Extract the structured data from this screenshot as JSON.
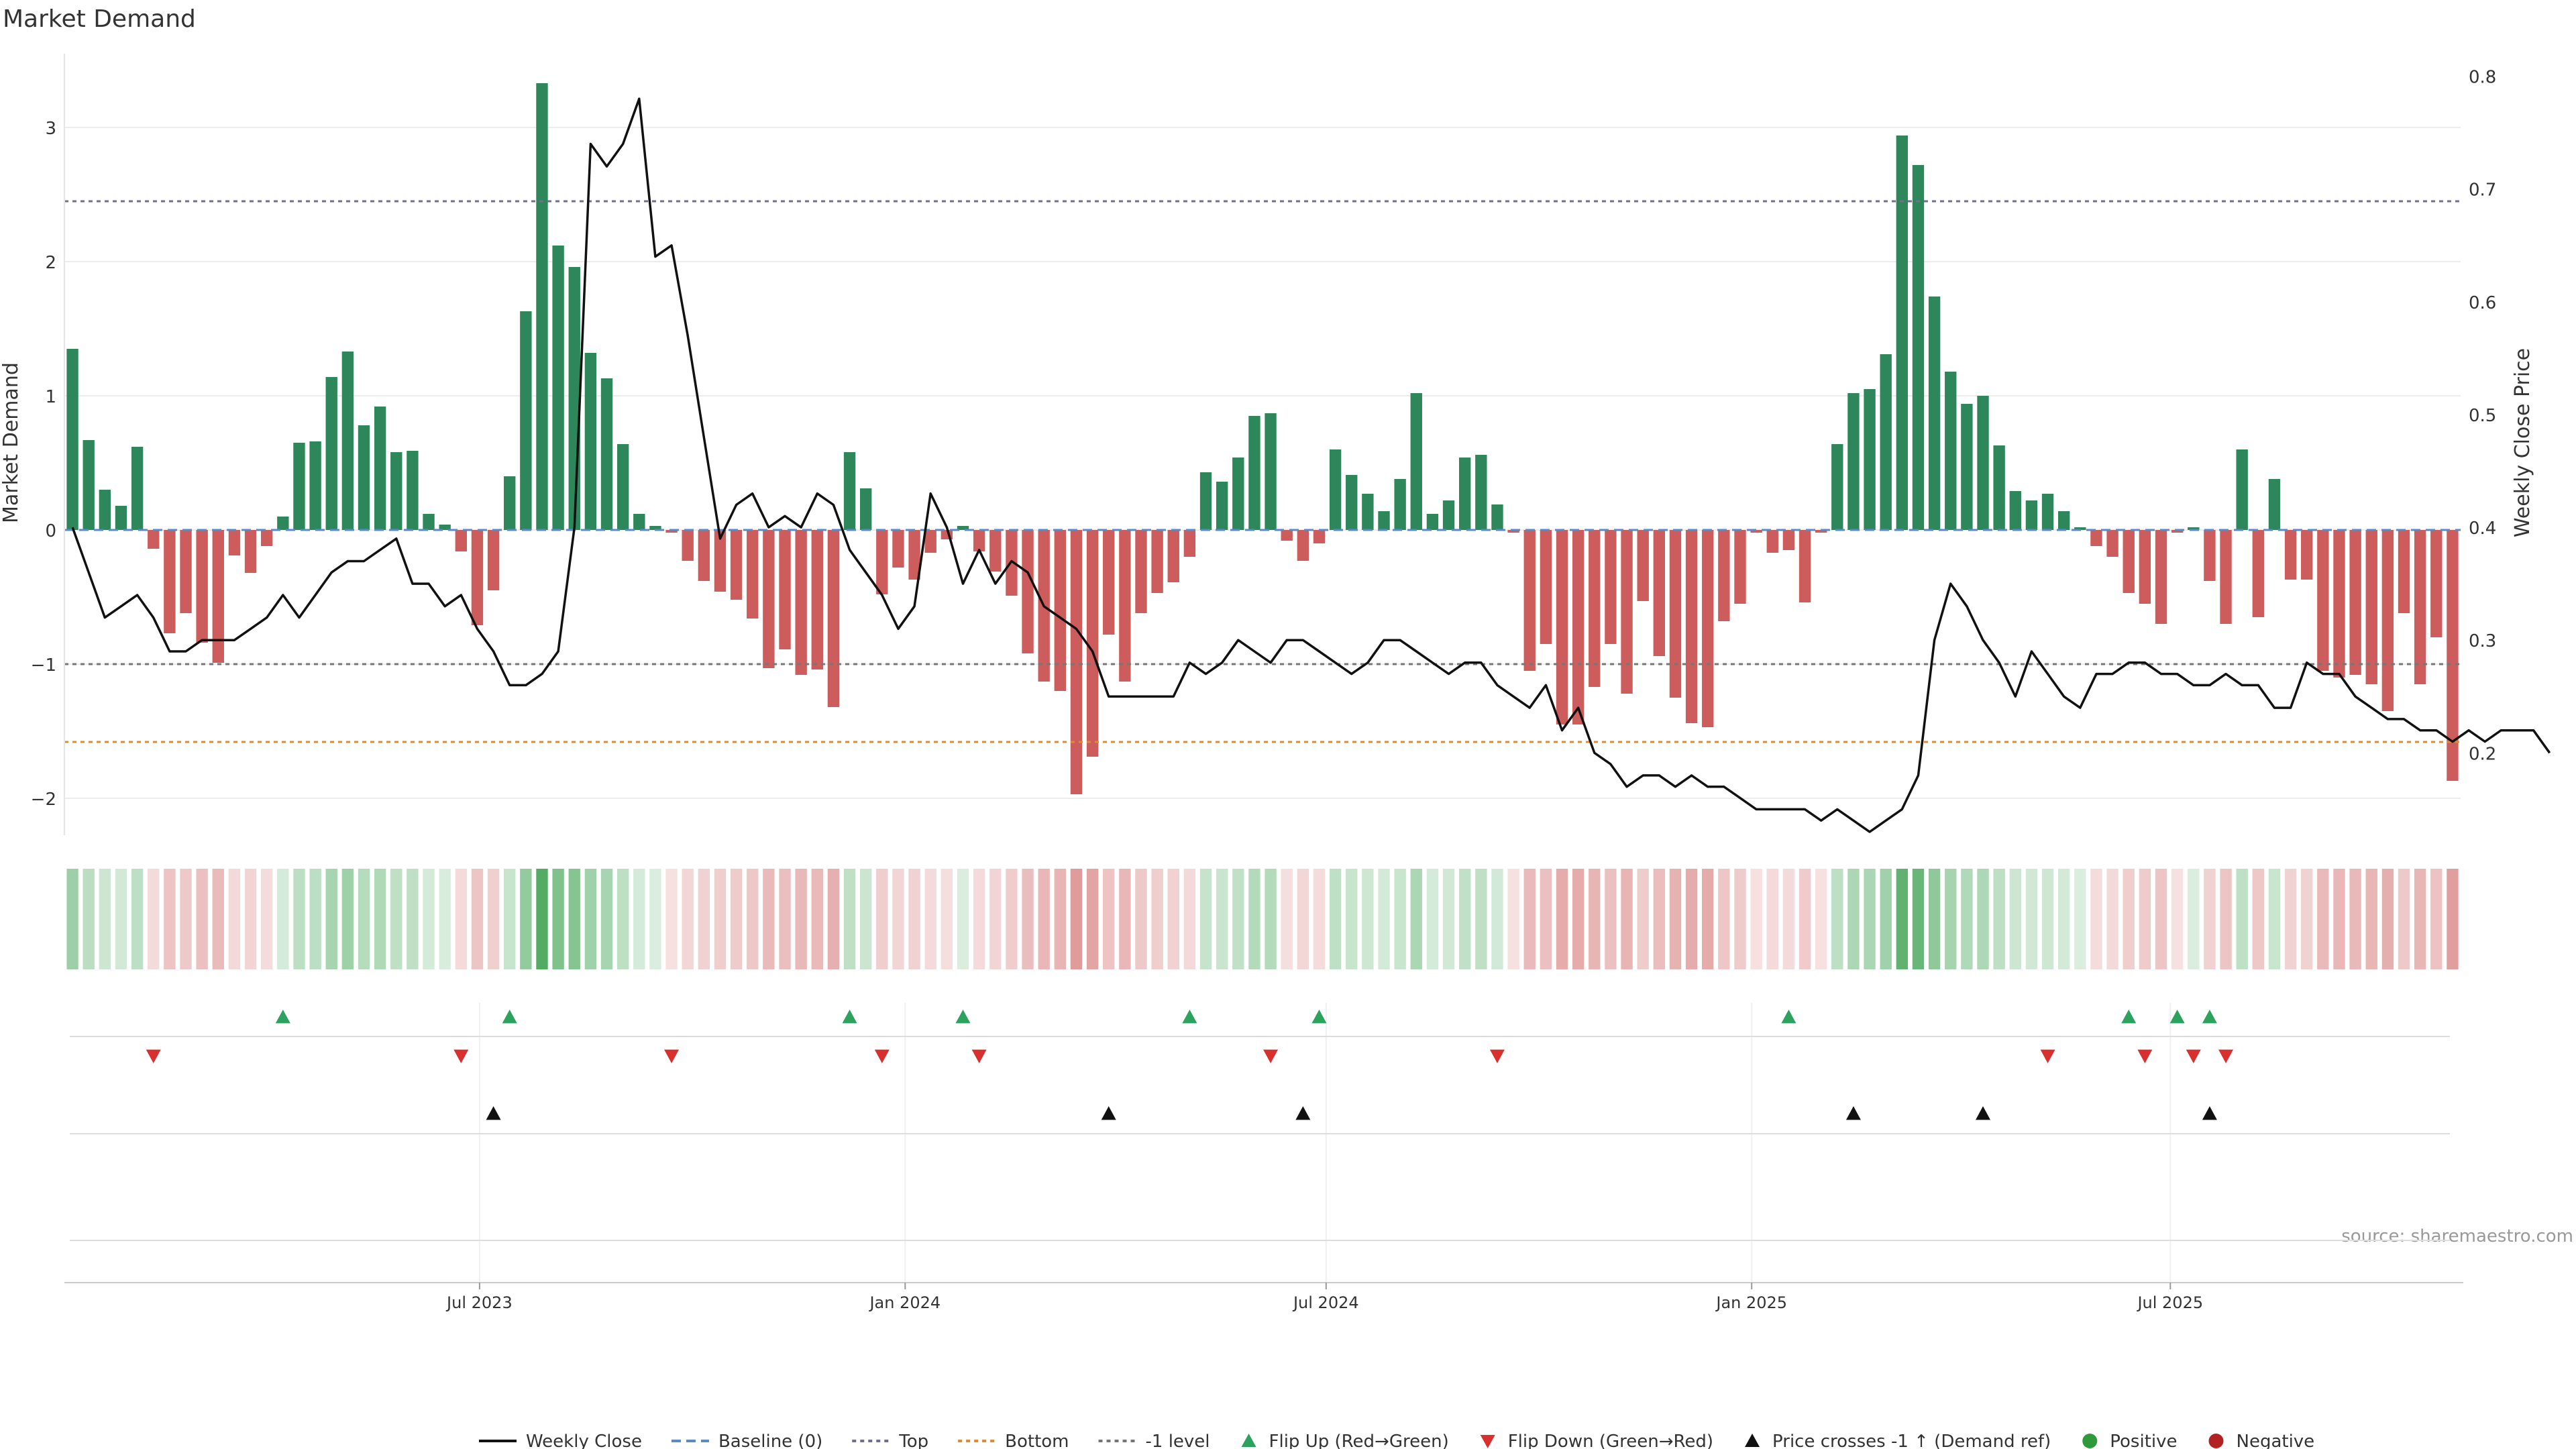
{
  "chart_data": {
    "type": "bar",
    "title": "Market Demand",
    "ylabel": "Market Demand",
    "y2label": "Weekly Close Price",
    "ylim": [
      -2.25,
      3.55
    ],
    "y2lim": [
      0.13,
      0.82
    ],
    "yticks": [
      -2,
      -1,
      0,
      1,
      2,
      3
    ],
    "y2ticks": [
      0.2,
      0.3,
      0.4,
      0.5,
      0.6,
      0.7,
      0.8
    ],
    "x_start": "2023-01-06",
    "x_step_days": 7,
    "xticks": [
      {
        "label": "Jul 2023",
        "date": "2023-07-01"
      },
      {
        "label": "Jan 2024",
        "date": "2024-01-01"
      },
      {
        "label": "Jul 2024",
        "date": "2024-07-01"
      },
      {
        "label": "Jan 2025",
        "date": "2025-01-01"
      },
      {
        "label": "Jul 2025",
        "date": "2025-07-01"
      }
    ],
    "levels": {
      "baseline": 0,
      "top": 2.45,
      "bottom": -1.58,
      "minus_one": -1
    },
    "demand": [
      1.35,
      0.67,
      0.3,
      0.18,
      0.62,
      -0.14,
      -0.77,
      -0.62,
      -0.84,
      -0.99,
      -0.19,
      -0.32,
      -0.12,
      0.1,
      0.65,
      0.66,
      1.14,
      1.33,
      0.78,
      0.92,
      0.58,
      0.59,
      0.12,
      0.04,
      -0.16,
      -0.71,
      -0.45,
      0.4,
      1.63,
      3.33,
      2.12,
      1.96,
      1.32,
      1.13,
      0.64,
      0.12,
      0.03,
      -0.02,
      -0.23,
      -0.38,
      -0.46,
      -0.52,
      -0.66,
      -1.03,
      -0.89,
      -1.08,
      -1.04,
      -1.32,
      0.58,
      0.31,
      -0.48,
      -0.28,
      -0.37,
      -0.17,
      -0.07,
      0.03,
      -0.16,
      -0.31,
      -0.49,
      -0.92,
      -1.13,
      -1.2,
      -1.97,
      -1.69,
      -0.78,
      -1.13,
      -0.62,
      -0.47,
      -0.39,
      -0.2,
      0.43,
      0.36,
      0.54,
      0.85,
      0.87,
      -0.08,
      -0.23,
      -0.1,
      0.6,
      0.41,
      0.27,
      0.14,
      0.38,
      1.02,
      0.12,
      0.22,
      0.54,
      0.56,
      0.19,
      -0.02,
      -1.05,
      -0.85,
      -1.45,
      -1.45,
      -1.17,
      -0.85,
      -1.22,
      -0.53,
      -0.94,
      -1.25,
      -1.44,
      -1.47,
      -0.68,
      -0.55,
      -0.02,
      -0.17,
      -0.15,
      -0.54,
      -0.02,
      0.64,
      1.02,
      1.05,
      1.31,
      2.94,
      2.72,
      1.74,
      1.18,
      0.94,
      1.0,
      0.63,
      0.29,
      0.22,
      0.27,
      0.14,
      0.02,
      -0.12,
      -0.2,
      -0.47,
      -0.55,
      -0.7,
      -0.02,
      0.02,
      -0.38,
      -0.7,
      0.6,
      -0.65,
      0.38,
      -0.37,
      -0.37,
      -1.05,
      -1.1,
      -1.08,
      -1.15,
      -1.35,
      -0.62,
      -1.15,
      -0.8,
      -1.87
    ],
    "close": [
      0.4,
      0.36,
      0.32,
      0.33,
      0.34,
      0.32,
      0.29,
      0.29,
      0.3,
      0.3,
      0.3,
      0.31,
      0.32,
      0.34,
      0.32,
      0.34,
      0.36,
      0.37,
      0.37,
      0.38,
      0.39,
      0.35,
      0.35,
      0.33,
      0.34,
      0.31,
      0.29,
      0.26,
      0.26,
      0.27,
      0.29,
      0.4,
      0.74,
      0.72,
      0.74,
      0.78,
      0.64,
      0.65,
      0.57,
      0.48,
      0.39,
      0.42,
      0.43,
      0.4,
      0.41,
      0.4,
      0.43,
      0.42,
      0.38,
      0.36,
      0.34,
      0.31,
      0.33,
      0.43,
      0.4,
      0.35,
      0.38,
      0.35,
      0.37,
      0.36,
      0.33,
      0.32,
      0.31,
      0.29,
      0.25,
      0.25,
      0.25,
      0.25,
      0.25,
      0.28,
      0.27,
      0.28,
      0.3,
      0.29,
      0.28,
      0.3,
      0.3,
      0.29,
      0.28,
      0.27,
      0.28,
      0.3,
      0.3,
      0.29,
      0.28,
      0.27,
      0.28,
      0.28,
      0.26,
      0.25,
      0.24,
      0.26,
      0.22,
      0.24,
      0.2,
      0.19,
      0.17,
      0.18,
      0.18,
      0.17,
      0.18,
      0.17,
      0.17,
      0.16,
      0.15,
      0.15,
      0.15,
      0.15,
      0.14,
      0.15,
      0.14,
      0.13,
      0.14,
      0.15,
      0.18,
      0.3,
      0.35,
      0.33,
      0.3,
      0.28,
      0.25,
      0.29,
      0.27,
      0.25,
      0.24,
      0.27,
      0.27,
      0.28,
      0.28,
      0.27,
      0.27,
      0.26,
      0.26,
      0.27,
      0.26,
      0.26,
      0.24,
      0.24,
      0.28,
      0.27,
      0.27,
      0.25,
      0.24,
      0.23,
      0.23,
      0.22,
      0.22,
      0.21,
      0.22,
      0.21,
      0.22,
      0.22,
      0.22,
      0.2
    ],
    "flip_up_idx": [
      13,
      27,
      48,
      55,
      69,
      77,
      106,
      127,
      130,
      132
    ],
    "flip_down_idx": [
      5,
      24,
      37,
      50,
      56,
      74,
      88,
      122,
      128,
      131,
      133
    ],
    "price_cross_idx": [
      26,
      64,
      76,
      110,
      118,
      132
    ],
    "source": "source: sharemaestro.com",
    "legend": [
      {
        "label": "Weekly Close",
        "kind": "line",
        "color": "#111111"
      },
      {
        "label": "Baseline (0)",
        "kind": "dashed",
        "color": "#5b8ac4"
      },
      {
        "label": "Top",
        "kind": "dotted",
        "color": "#6f6f8f"
      },
      {
        "label": "Bottom",
        "kind": "dotted",
        "color": "#e08c2e"
      },
      {
        "label": "-1 level",
        "kind": "dotted",
        "color": "#777777"
      },
      {
        "label": "Flip Up (Red→Green)",
        "kind": "tri-up",
        "color": "#2ca25f"
      },
      {
        "label": "Flip Down (Green→Red)",
        "kind": "tri-down",
        "color": "#d7302f"
      },
      {
        "label": "Price crosses -1 ↑ (Demand ref)",
        "kind": "tri-up",
        "color": "#111111"
      },
      {
        "label": "Positive",
        "kind": "dot",
        "color": "#2e9a3a"
      },
      {
        "label": "Negative",
        "kind": "dot",
        "color": "#b22222"
      }
    ]
  },
  "colors": {
    "positive_bar": "#2e875a",
    "negative_bar": "#cd5c5c",
    "heat_positive": "#3aa04e",
    "heat_negative": "#cd5c5c",
    "price_line": "#111111",
    "grid": "#ececec"
  }
}
